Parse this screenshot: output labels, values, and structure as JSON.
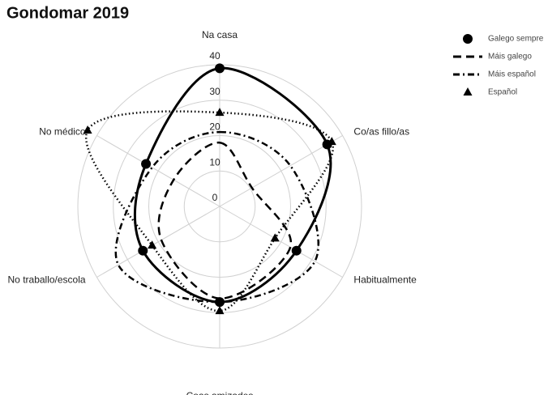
{
  "chart_data": {
    "type": "radar",
    "title": "Gondomar 2019",
    "categories": [
      "Na casa",
      "Co/as fillo/as",
      "Habitualmente",
      "Coas amizades",
      "No traballo/escola",
      "No médico"
    ],
    "ylim": [
      0,
      40
    ],
    "yticks": [
      0,
      10,
      20,
      30,
      40
    ],
    "grid": true,
    "legend": "top-right",
    "series": [
      {
        "name": "Galego sempre",
        "color": "#000000",
        "dash": "solid",
        "marker": "circle",
        "values": [
          39,
          35,
          25,
          27,
          25,
          24
        ]
      },
      {
        "name": "Máis galego",
        "color": "#000000",
        "dash": "dash",
        "marker": "none",
        "values": [
          18,
          10.5,
          23,
          26,
          19,
          15
        ]
      },
      {
        "name": "Máis español",
        "color": "#000000",
        "dash": "dashdot",
        "marker": "none",
        "values": [
          21,
          23,
          31,
          27,
          33,
          22
        ]
      },
      {
        "name": "Español",
        "color": "#000000",
        "dash": "dot",
        "marker": "triangle",
        "values": [
          26.5,
          36.5,
          18,
          29.5,
          22,
          43
        ]
      }
    ]
  }
}
